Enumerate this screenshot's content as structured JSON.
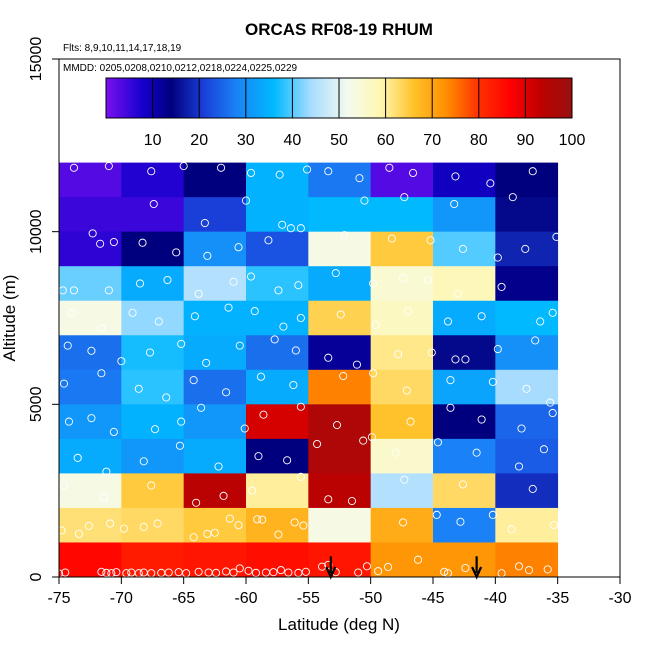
{
  "chart_data": {
    "type": "heatmap",
    "title": "ORCAS RF08-19 RHUM",
    "flights_note": "Flts: 8,9,10,11,14,17,18,19",
    "dates_note": "MMDD: 0205,0208,0210,0212,0218,0224,0225,0229",
    "xlabel": "Latitude (deg N)",
    "ylabel": "Altitude (m)",
    "xlim": [
      -75,
      -30
    ],
    "ylim": [
      0,
      15000
    ],
    "x_ticks": [
      -75,
      -70,
      -65,
      -60,
      -55,
      -50,
      -45,
      -40,
      -35,
      -30
    ],
    "x_tick_labels": [
      "-75",
      "-70",
      "-65",
      "-60",
      "-55",
      "-50",
      "-45",
      "-40",
      "-35",
      "-30"
    ],
    "y_ticks": [
      0,
      5000,
      10000,
      15000
    ],
    "y_tick_labels": [
      "0",
      "5000",
      "10000",
      "15000"
    ],
    "lat_bin_edges": [
      -75,
      -70,
      -65,
      -60,
      -55,
      -50,
      -45,
      -40,
      -35
    ],
    "alt_bin_edges": [
      0,
      1000,
      2000,
      3000,
      4000,
      5000,
      6000,
      7000,
      8000,
      9000,
      10000,
      11000,
      12000
    ],
    "colorbar": {
      "range": [
        0,
        100
      ],
      "tick_values": [
        10,
        20,
        30,
        40,
        50,
        60,
        70,
        80,
        90,
        100
      ],
      "tick_labels": [
        "10",
        "20",
        "30",
        "40",
        "50",
        "60",
        "70",
        "80",
        "90",
        "100"
      ],
      "color_stops": [
        [
          0,
          "#7a10f0"
        ],
        [
          8,
          "#1400cc"
        ],
        [
          14,
          "#00007e"
        ],
        [
          21,
          "#1a3fd8"
        ],
        [
          28,
          "#1a82f6"
        ],
        [
          36,
          "#00b9ff"
        ],
        [
          44,
          "#a8dcff"
        ],
        [
          52,
          "#f4fbee"
        ],
        [
          59,
          "#fff7b0"
        ],
        [
          66,
          "#ffc22a"
        ],
        [
          73,
          "#ff8f00"
        ],
        [
          80,
          "#ff3000"
        ],
        [
          87,
          "#ff0000"
        ],
        [
          93,
          "#c00000"
        ],
        [
          100,
          "#981010"
        ]
      ]
    },
    "rhum_grid_rows_top_to_bottom": [
      [
        3,
        7,
        14,
        35,
        27,
        3,
        9,
        14
      ],
      [
        5,
        5,
        21,
        35,
        36,
        36,
        31,
        15
      ],
      [
        6,
        14,
        30,
        23,
        53,
        65,
        40,
        18
      ],
      [
        41,
        34,
        45,
        38,
        34,
        55,
        58,
        13
      ],
      [
        53,
        43,
        35,
        35,
        64,
        57,
        34,
        36
      ],
      [
        26,
        37,
        34,
        26,
        12,
        61,
        15,
        30
      ],
      [
        27,
        38,
        26,
        34,
        74,
        63,
        33,
        44
      ],
      [
        31,
        35,
        31,
        91,
        96,
        66,
        14,
        25
      ],
      [
        34,
        31,
        34,
        14,
        96,
        56,
        28,
        24
      ],
      [
        53,
        65,
        94,
        60,
        94,
        45,
        63,
        19
      ],
      [
        62,
        63,
        65,
        68,
        53,
        69,
        28,
        60
      ],
      [
        86,
        83,
        84,
        85,
        84,
        72,
        72,
        74
      ]
    ],
    "arrows": [
      {
        "latitude": -53.2,
        "altitude_top": 600,
        "altitude_bottom": 0
      },
      {
        "latitude": -41.5,
        "altitude_top": 600,
        "altitude_bottom": 0
      }
    ],
    "sample_circles_lat_alt": [
      [
        -75,
        100
      ],
      [
        -74.5,
        130
      ],
      [
        -71.6,
        150
      ],
      [
        -71.2,
        120
      ],
      [
        -70.8,
        110
      ],
      [
        -70.4,
        140
      ],
      [
        -69.6,
        110
      ],
      [
        -69.2,
        130
      ],
      [
        -68.6,
        110
      ],
      [
        -68.2,
        130
      ],
      [
        -67.6,
        110
      ],
      [
        -66.8,
        120
      ],
      [
        -66.2,
        130
      ],
      [
        -65.4,
        140
      ],
      [
        -64.8,
        110
      ],
      [
        -63.8,
        150
      ],
      [
        -63.0,
        130
      ],
      [
        -62.4,
        120
      ],
      [
        -61.6,
        160
      ],
      [
        -61.0,
        130
      ],
      [
        -60.5,
        250
      ],
      [
        -59.8,
        180
      ],
      [
        -59.2,
        120
      ],
      [
        -58.4,
        130
      ],
      [
        -57.8,
        140
      ],
      [
        -57.2,
        200
      ],
      [
        -56.6,
        130
      ],
      [
        -55.8,
        120
      ],
      [
        -55.2,
        150
      ],
      [
        -53.9,
        300
      ],
      [
        -53.4,
        350
      ],
      [
        -52.8,
        140
      ],
      [
        -51.0,
        130
      ],
      [
        -50.3,
        310
      ],
      [
        -49.4,
        170
      ],
      [
        -48.6,
        290
      ],
      [
        -46.2,
        500
      ],
      [
        -44.1,
        150
      ],
      [
        -43.8,
        110
      ],
      [
        -42.4,
        260
      ],
      [
        -39.5,
        110
      ],
      [
        -38.1,
        310
      ],
      [
        -37.3,
        200
      ],
      [
        -35.8,
        220
      ],
      [
        -74.8,
        1350
      ],
      [
        -73.4,
        1250
      ],
      [
        -72.6,
        1480
      ],
      [
        -70.9,
        1550
      ],
      [
        -69.8,
        1400
      ],
      [
        -68.2,
        1450
      ],
      [
        -67.1,
        1550
      ],
      [
        -64.2,
        1150
      ],
      [
        -63.1,
        1250
      ],
      [
        -62.5,
        1280
      ],
      [
        -61.3,
        1690
      ],
      [
        -60.6,
        1500
      ],
      [
        -59.1,
        1670
      ],
      [
        -58.7,
        1660
      ],
      [
        -57.4,
        1230
      ],
      [
        -56.1,
        1580
      ],
      [
        -55.4,
        1490
      ],
      [
        -47.4,
        1580
      ],
      [
        -44.7,
        1800
      ],
      [
        -42.8,
        1600
      ],
      [
        -40.2,
        1800
      ],
      [
        -38.7,
        1380
      ],
      [
        -35.3,
        1500
      ],
      [
        -74.6,
        2650
      ],
      [
        -71.4,
        2300
      ],
      [
        -67.6,
        2650
      ],
      [
        -64.0,
        2150
      ],
      [
        -61.8,
        2350
      ],
      [
        -59.5,
        2500
      ],
      [
        -55.6,
        2900
      ],
      [
        -53.4,
        2250
      ],
      [
        -51.5,
        2200
      ],
      [
        -47.3,
        2820
      ],
      [
        -42.6,
        2680
      ],
      [
        -37.0,
        2550
      ],
      [
        -73.5,
        3450
      ],
      [
        -71.2,
        3050
      ],
      [
        -68.2,
        3350
      ],
      [
        -65.3,
        3800
      ],
      [
        -62.2,
        3200
      ],
      [
        -59.0,
        3500
      ],
      [
        -56.7,
        3380
      ],
      [
        -54.3,
        3850
      ],
      [
        -50.6,
        3950
      ],
      [
        -48.0,
        3600
      ],
      [
        -44.6,
        3900
      ],
      [
        -41.5,
        3600
      ],
      [
        -38.1,
        3200
      ],
      [
        -36.1,
        3700
      ],
      [
        -74.2,
        4500
      ],
      [
        -72.4,
        4600
      ],
      [
        -70.6,
        4200
      ],
      [
        -67.3,
        4280
      ],
      [
        -65.2,
        4500
      ],
      [
        -63.6,
        4900
      ],
      [
        -60.1,
        4300
      ],
      [
        -58.6,
        4700
      ],
      [
        -55.6,
        4930
      ],
      [
        -52.7,
        4400
      ],
      [
        -49.9,
        4050
      ],
      [
        -46.8,
        4500
      ],
      [
        -43.6,
        4900
      ],
      [
        -41.1,
        4560
      ],
      [
        -37.9,
        4300
      ],
      [
        -35.4,
        4750
      ],
      [
        -74.6,
        5600
      ],
      [
        -71.6,
        5900
      ],
      [
        -68.6,
        5450
      ],
      [
        -66.4,
        5200
      ],
      [
        -64.2,
        5700
      ],
      [
        -61.6,
        5350
      ],
      [
        -58.8,
        5800
      ],
      [
        -56.2,
        5560
      ],
      [
        -52.2,
        5820
      ],
      [
        -49.8,
        5900
      ],
      [
        -47.1,
        5400
      ],
      [
        -43.6,
        5700
      ],
      [
        -40.2,
        5650
      ],
      [
        -37.5,
        5450
      ],
      [
        -35.6,
        5050
      ],
      [
        -74.3,
        6700
      ],
      [
        -72.4,
        6550
      ],
      [
        -70.0,
        6250
      ],
      [
        -67.7,
        6500
      ],
      [
        -65.2,
        6750
      ],
      [
        -63.2,
        6200
      ],
      [
        -60.5,
        6700
      ],
      [
        -57.7,
        6880
      ],
      [
        -56.0,
        6560
      ],
      [
        -53.4,
        6350
      ],
      [
        -51.1,
        6150
      ],
      [
        -47.8,
        6450
      ],
      [
        -45.1,
        6500
      ],
      [
        -43.2,
        6300
      ],
      [
        -42.4,
        6300
      ],
      [
        -39.8,
        6600
      ],
      [
        -36.8,
        6850
      ],
      [
        -74.0,
        7650
      ],
      [
        -71.6,
        7200
      ],
      [
        -69.1,
        7650
      ],
      [
        -67.0,
        7400
      ],
      [
        -64.1,
        7550
      ],
      [
        -61.4,
        7800
      ],
      [
        -59.3,
        7700
      ],
      [
        -57.0,
        7250
      ],
      [
        -55.6,
        7500
      ],
      [
        -52.4,
        7600
      ],
      [
        -49.6,
        7300
      ],
      [
        -47.0,
        7700
      ],
      [
        -43.8,
        7400
      ],
      [
        -41.1,
        7550
      ],
      [
        -36.4,
        7400
      ],
      [
        -35.4,
        7650
      ],
      [
        -74.7,
        8300
      ],
      [
        -73.8,
        8300
      ],
      [
        -71.0,
        8300
      ],
      [
        -68.5,
        8500
      ],
      [
        -66.3,
        8600
      ],
      [
        -63.8,
        8200
      ],
      [
        -61.0,
        8550
      ],
      [
        -59.6,
        8700
      ],
      [
        -57.4,
        8300
      ],
      [
        -55.8,
        8450
      ],
      [
        -52.8,
        8800
      ],
      [
        -49.8,
        8500
      ],
      [
        -47.4,
        8650
      ],
      [
        -45.4,
        8600
      ],
      [
        -43.0,
        8200
      ],
      [
        -39.5,
        8400
      ],
      [
        -71.7,
        9650
      ],
      [
        -70.6,
        9700
      ],
      [
        -68.3,
        9680
      ],
      [
        -65.6,
        9400
      ],
      [
        -63.1,
        9300
      ],
      [
        -60.6,
        9550
      ],
      [
        -58.2,
        9750
      ],
      [
        -56.4,
        10100
      ],
      [
        -55.6,
        10100
      ],
      [
        -52.1,
        9900
      ],
      [
        -48.3,
        9800
      ],
      [
        -45.2,
        9750
      ],
      [
        -42.6,
        9500
      ],
      [
        -39.8,
        9250
      ],
      [
        -37.6,
        9500
      ],
      [
        -35.1,
        9850
      ],
      [
        -72.3,
        9950
      ],
      [
        -67.4,
        10800
      ],
      [
        -63.3,
        10250
      ],
      [
        -60.0,
        10900
      ],
      [
        -57.1,
        10200
      ],
      [
        -50.5,
        10900
      ],
      [
        -47.3,
        11000
      ],
      [
        -43.3,
        10800
      ],
      [
        -38.6,
        11000
      ],
      [
        -73.8,
        11850
      ],
      [
        -71.0,
        11900
      ],
      [
        -67.6,
        11750
      ],
      [
        -65.0,
        11900
      ],
      [
        -62.0,
        11850
      ],
      [
        -59.6,
        11700
      ],
      [
        -57.3,
        11650
      ],
      [
        -55.1,
        11800
      ],
      [
        -53.4,
        11750
      ],
      [
        -50.9,
        11550
      ],
      [
        -48.5,
        11850
      ],
      [
        -46.6,
        11700
      ],
      [
        -43.2,
        11600
      ],
      [
        -40.4,
        11400
      ],
      [
        -37.0,
        11750
      ]
    ]
  }
}
